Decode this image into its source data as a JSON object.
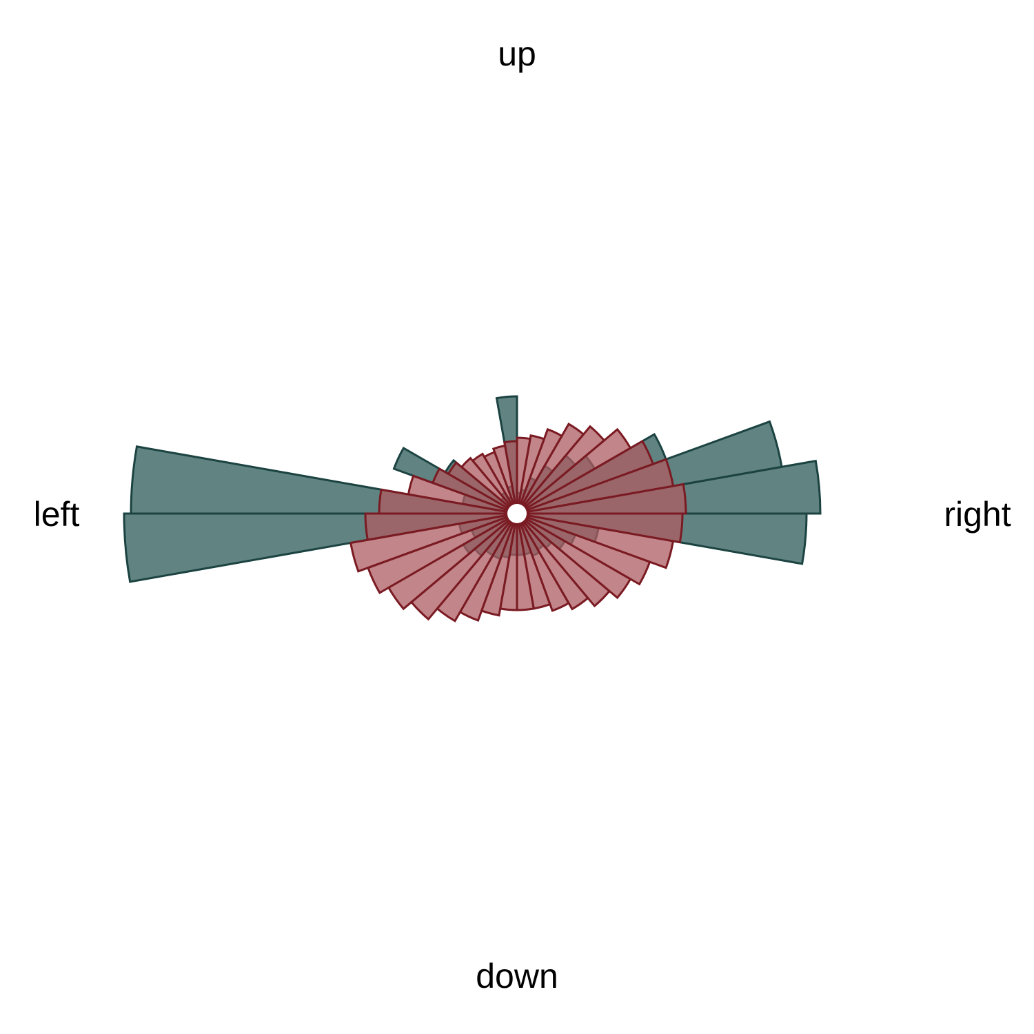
{
  "chart_data": {
    "type": "rose",
    "title": "",
    "direction_labels": {
      "up": "up",
      "right": "right",
      "down": "down",
      "left": "left"
    },
    "bins": 36,
    "bin_width_deg": 10,
    "angle_convention": "0 deg = right, counter-clockwise, bin i spans [10*i, 10*(i+1)]",
    "series": [
      {
        "color": "#618381",
        "stroke": "#1b4341",
        "values": [
          440,
          390,
          230,
          130,
          110,
          80,
          55,
          35,
          30,
          170,
          40,
          25,
          35,
          30,
          120,
          190,
          80,
          560,
          570,
          85,
          70,
          90,
          80,
          70,
          70,
          65,
          60,
          60,
          60,
          65,
          60,
          65,
          80,
          90,
          120,
          420
        ]
      },
      {
        "color": "#ad5c61",
        "stroke": "#7a1a22",
        "values": [
          245,
          230,
          210,
          190,
          165,
          150,
          130,
          115,
          110,
          105,
          100,
          95,
          100,
          105,
          115,
          130,
          160,
          200,
          220,
          245,
          230,
          215,
          200,
          180,
          165,
          150,
          140,
          140,
          140,
          150,
          160,
          175,
          190,
          205,
          230,
          240
        ]
      }
    ]
  }
}
